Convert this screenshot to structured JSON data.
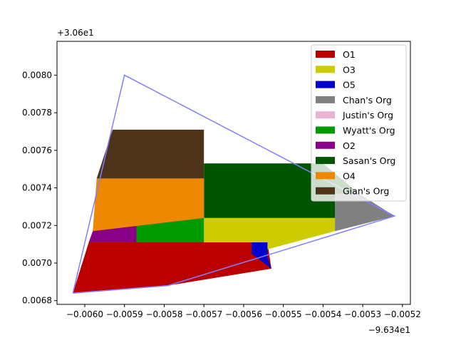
{
  "chart_data": {
    "type": "area",
    "x_offset_label": "−9.634e1",
    "y_offset_label": "+3.06e1",
    "xlim": [
      -0.00607,
      -0.00518
    ],
    "ylim": [
      0.00678,
      0.00818
    ],
    "x_ticks": [
      -0.006,
      -0.0059,
      -0.0058,
      -0.0057,
      -0.0056,
      -0.0055,
      -0.0054,
      -0.0053,
      -0.0052
    ],
    "x_tick_labels": [
      "−0.0060",
      "−0.0059",
      "−0.0058",
      "−0.0057",
      "−0.0056",
      "−0.0055",
      "−0.0054",
      "−0.0053",
      "−0.0052"
    ],
    "y_ticks": [
      0.0068,
      0.007,
      0.0072,
      0.0074,
      0.0076,
      0.0078,
      0.008
    ],
    "y_tick_labels": [
      "0.0068",
      "0.0070",
      "0.0072",
      "0.0074",
      "0.0076",
      "0.0078",
      "0.0080"
    ],
    "grid": false,
    "legend_position": "top-right",
    "boundary": {
      "color": "#8080ff",
      "points": [
        [
          -0.00603,
          0.00684
        ],
        [
          -0.0059,
          0.008
        ],
        [
          -0.00522,
          0.00725
        ],
        [
          -0.00579,
          0.00688
        ],
        [
          -0.00603,
          0.00684
        ]
      ]
    },
    "series": [
      {
        "name": "O1",
        "color": "#bb0000",
        "polygons": [
          [
            [
              -0.00603,
              0.00684
            ],
            [
              -0.00599,
              0.00711
            ],
            [
              -0.00554,
              0.00711
            ],
            [
              -0.00553,
              0.00697
            ],
            [
              -0.00579,
              0.00688
            ]
          ]
        ]
      },
      {
        "name": "O3",
        "color": "#cccc00",
        "polygons": [
          [
            [
              -0.0057,
              0.00724
            ],
            [
              -0.00537,
              0.00724
            ],
            [
              -0.00537,
              0.00717
            ],
            [
              -0.00558,
              0.00705
            ],
            [
              -0.00558,
              0.00711
            ],
            [
              -0.0057,
              0.00711
            ]
          ]
        ]
      },
      {
        "name": "O5",
        "color": "#0000cc",
        "polygons": [
          [
            [
              -0.00554,
              0.00711
            ],
            [
              -0.00558,
              0.00711
            ],
            [
              -0.00558,
              0.00705
            ],
            [
              -0.00553,
              0.00697
            ],
            [
              -0.00554,
              0.00703
            ]
          ]
        ]
      },
      {
        "name": "Chan's Org",
        "color": "#808080",
        "polygons": [
          [
            [
              -0.00537,
              0.00724
            ],
            [
              -0.00537,
              0.00717
            ],
            [
              -0.00522,
              0.00725
            ],
            [
              -0.00531,
              0.00737
            ],
            [
              -0.00537,
              0.00737
            ]
          ]
        ]
      },
      {
        "name": "Justin's Org",
        "color": "#ebb3d3",
        "polygons": []
      },
      {
        "name": "Wyatt's Org",
        "color": "#009900",
        "polygons": [
          [
            [
              -0.00587,
              0.00723
            ],
            [
              -0.0057,
              0.00724
            ],
            [
              -0.0057,
              0.00711
            ],
            [
              -0.00587,
              0.00711
            ]
          ]
        ]
      },
      {
        "name": "O2",
        "color": "#880088",
        "polygons": [
          [
            [
              -0.00598,
              0.00717
            ],
            [
              -0.00587,
              0.00723
            ],
            [
              -0.00587,
              0.00711
            ],
            [
              -0.00599,
              0.00711
            ]
          ]
        ]
      },
      {
        "name": "Sasan's Org",
        "color": "#005500",
        "polygons": [
          [
            [
              -0.0057,
              0.00753
            ],
            [
              -0.0054,
              0.00753
            ],
            [
              -0.00531,
              0.00737
            ],
            [
              -0.00537,
              0.00737
            ],
            [
              -0.00537,
              0.00724
            ],
            [
              -0.0057,
              0.00724
            ]
          ]
        ]
      },
      {
        "name": "O4",
        "color": "#ee8800",
        "polygons": [
          [
            [
              -0.00597,
              0.00745
            ],
            [
              -0.0057,
              0.00745
            ],
            [
              -0.0057,
              0.00724
            ],
            [
              -0.00598,
              0.00717
            ]
          ]
        ]
      },
      {
        "name": "Gian's Org",
        "color": "#4d3319",
        "polygons": [
          [
            [
              -0.00593,
              0.00771
            ],
            [
              -0.0057,
              0.00771
            ],
            [
              -0.0057,
              0.00745
            ],
            [
              -0.00597,
              0.00745
            ]
          ]
        ]
      }
    ]
  }
}
